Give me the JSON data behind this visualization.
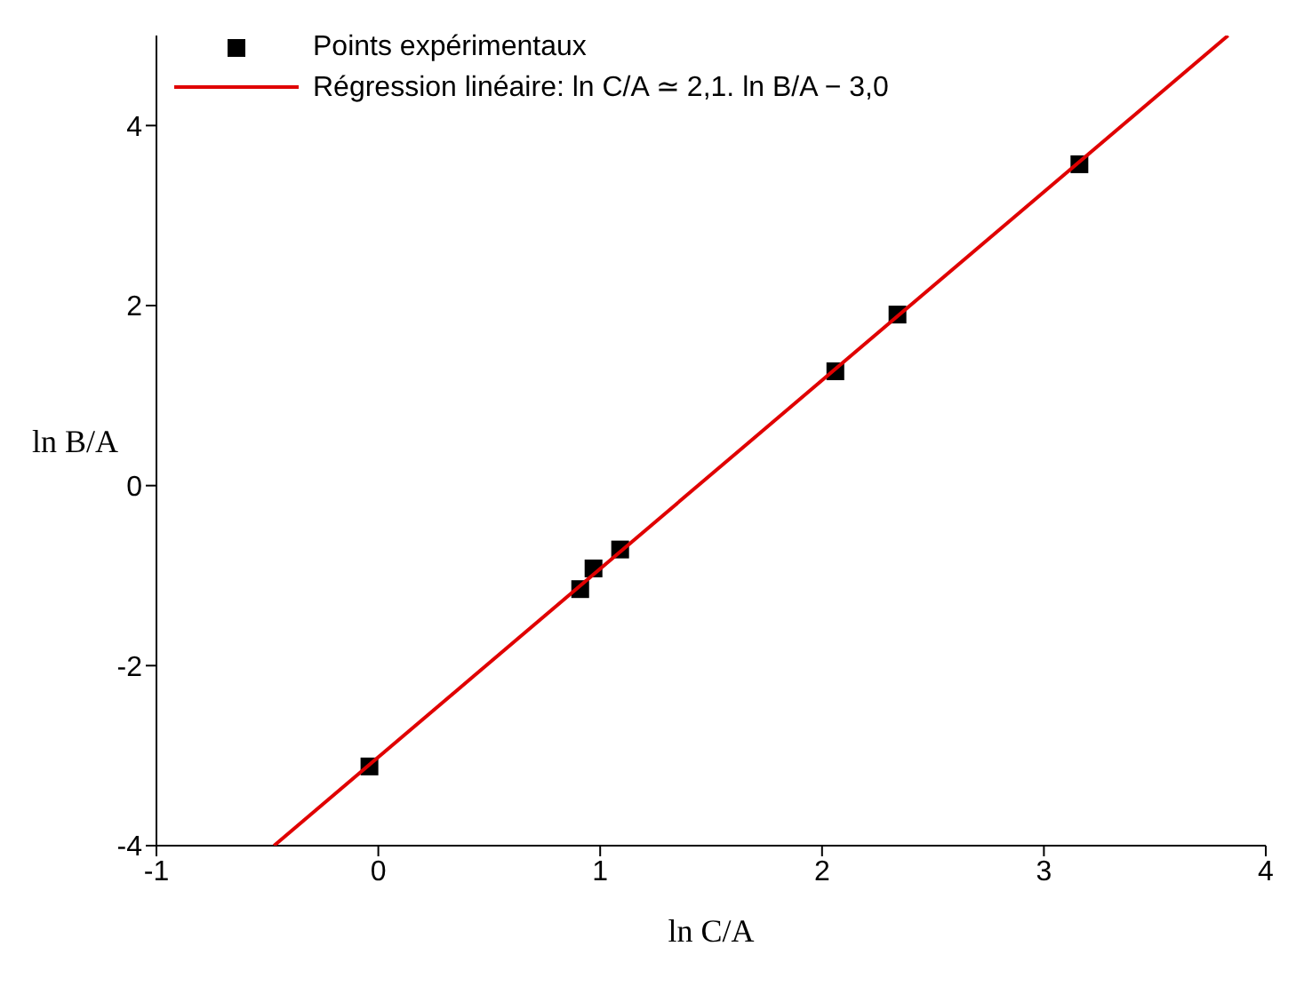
{
  "chart_data": {
    "type": "scatter",
    "xlabel": "ln C/A",
    "ylabel": "ln B/A",
    "xlim": [
      -1,
      4
    ],
    "xticks": [
      -1,
      0,
      1,
      2,
      3,
      4
    ],
    "ylim": [
      -4,
      5
    ],
    "yticks": [
      -4,
      -2,
      0,
      2,
      4
    ],
    "legend": "top left",
    "series": [
      {
        "name": "Points expérimentaux",
        "marker": "square",
        "color": "#000000",
        "x": [
          -0.04,
          0.91,
          0.97,
          1.09,
          2.06,
          2.34,
          3.16
        ],
        "values": [
          -3.12,
          -1.15,
          -0.92,
          -0.71,
          1.27,
          1.9,
          3.57
        ]
      },
      {
        "name": "Régression linéaire: ln C/A ≃ 2,1. ln B/A − 3,0",
        "type": "line",
        "marker": "none",
        "color": "#e00000",
        "x": [
          -0.47,
          3.83
        ],
        "values": [
          -4,
          5
        ]
      }
    ]
  }
}
